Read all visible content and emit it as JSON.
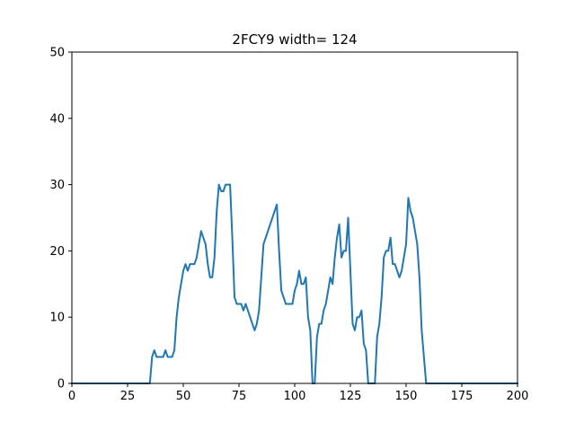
{
  "chart_data": {
    "type": "line",
    "title": "2FCY9 width= 124",
    "xlabel": "",
    "ylabel": "",
    "xlim": [
      0,
      200
    ],
    "ylim": [
      0,
      50
    ],
    "xticks": [
      0,
      25,
      50,
      75,
      100,
      125,
      150,
      175,
      200
    ],
    "yticks": [
      0,
      10,
      20,
      30,
      40,
      50
    ],
    "xtick_labels": [
      "0",
      "25",
      "50",
      "75",
      "100",
      "125",
      "150",
      "175",
      "200"
    ],
    "ytick_labels": [
      "0",
      "10",
      "20",
      "30",
      "40",
      "50"
    ],
    "grid": false,
    "legend": "none",
    "series": [
      {
        "color": "#1f77b4",
        "x": [
          0,
          35,
          36,
          37,
          38,
          40,
          41,
          42,
          43,
          45,
          46,
          47,
          48,
          49,
          50,
          51,
          52,
          53,
          54,
          55,
          56,
          57,
          58,
          59,
          60,
          61,
          62,
          63,
          64,
          65,
          66,
          67,
          68,
          69,
          70,
          71,
          72,
          73,
          74,
          75,
          76,
          77,
          78,
          79,
          80,
          81,
          82,
          83,
          84,
          85,
          86,
          88,
          90,
          92,
          93,
          94,
          95,
          96,
          97,
          98,
          99,
          100,
          101,
          102,
          103,
          104,
          105,
          106,
          107,
          108,
          109,
          110,
          111,
          112,
          113,
          114,
          115,
          116,
          117,
          118,
          119,
          120,
          121,
          122,
          123,
          124,
          125,
          126,
          127,
          128,
          129,
          130,
          131,
          132,
          133,
          134,
          135,
          136,
          137,
          138,
          139,
          140,
          141,
          142,
          143,
          144,
          145,
          146,
          147,
          148,
          149,
          150,
          151,
          152,
          153,
          154,
          155,
          156,
          157,
          158,
          159,
          160,
          165,
          200
        ],
        "y": [
          0,
          0,
          4,
          5,
          4,
          4,
          4,
          5,
          4,
          4,
          5,
          10,
          13,
          15,
          17,
          18,
          17,
          18,
          18,
          18,
          19,
          21,
          23,
          22,
          21,
          18,
          16,
          16,
          19,
          26,
          30,
          29,
          29,
          30,
          30,
          30,
          22,
          13,
          12,
          12,
          12,
          11,
          12,
          11,
          10,
          9,
          8,
          9,
          11,
          16,
          21,
          23,
          25,
          27,
          20,
          14,
          13,
          12,
          12,
          12,
          12,
          14,
          15,
          17,
          15,
          15,
          16,
          10,
          8,
          0,
          0,
          7,
          9,
          9,
          11,
          12,
          14,
          16,
          15,
          19,
          22,
          24,
          19,
          20,
          20,
          25,
          17,
          9,
          8,
          10,
          10,
          11,
          6,
          5,
          0,
          0,
          0,
          0,
          7,
          9,
          13,
          19,
          20,
          20,
          22,
          18,
          18,
          17,
          16,
          17,
          19,
          21,
          28,
          26,
          25,
          23,
          21,
          16,
          8,
          4,
          0,
          0,
          0,
          0
        ]
      }
    ]
  }
}
